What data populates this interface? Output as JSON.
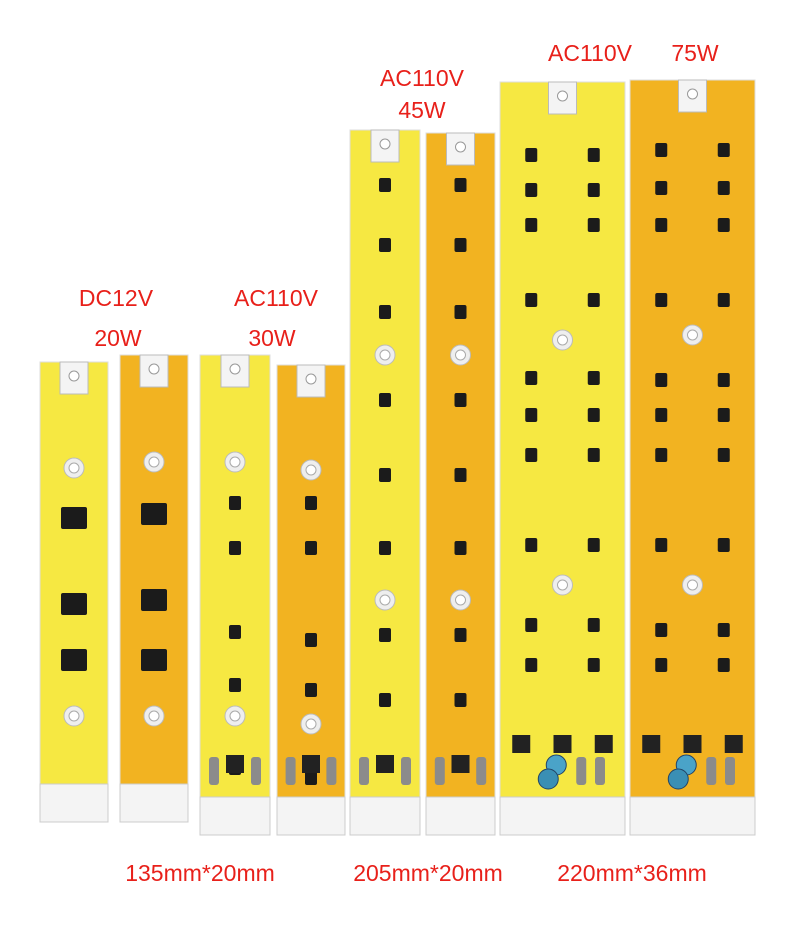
{
  "labels": {
    "dc12v": {
      "voltage": "DC12V",
      "power": "20W"
    },
    "ac110v_30w": {
      "voltage": "AC110V",
      "power": "30W"
    },
    "ac110v_45w": {
      "voltage": "AC110V",
      "power": "45W"
    },
    "ac110v_75w": {
      "voltage": "AC110V",
      "power": "75W"
    }
  },
  "sizes": [
    "135mm*20mm",
    "205mm*20mm",
    "220mm*36mm"
  ]
}
